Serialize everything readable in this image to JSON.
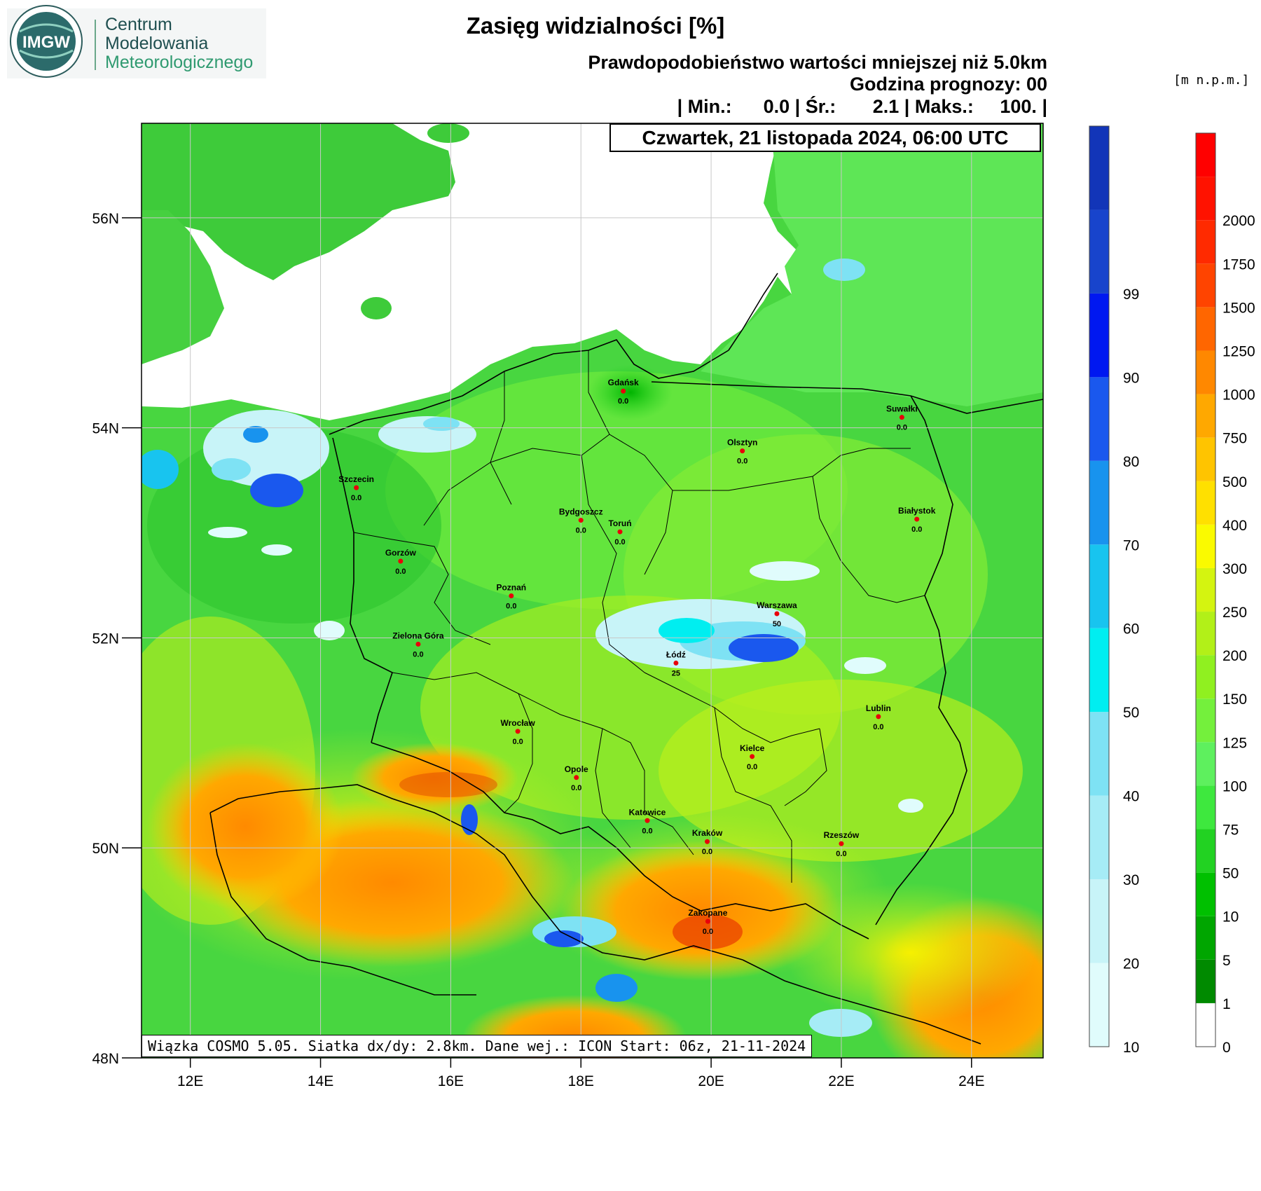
{
  "logo": {
    "badge": "IMGW",
    "org_line1": "Centrum",
    "org_line2": "Modelowania",
    "org_line3": "Meteorologicznego"
  },
  "header": {
    "title": "Zasięg widzialności [%]",
    "subtitle": "Prawdopodobieństwo wartości mniejszej niż 5.0km",
    "forecast_hour": "Godzina prognozy: 00",
    "stats": "| Min.:      0.0 | Śr.:       2.1 | Maks.:     100. |"
  },
  "date_label": "Czwartek, 21 listopada 2024, 06:00 UTC",
  "footer": "Wiązka COSMO 5.05. Siatka dx/dy: 2.8km. Dane wej.: ICON Start: 06z, 21-11-2024",
  "terrain_unit": "[m n.p.m.]",
  "map": {
    "lon_range": [
      11.25,
      25.1
    ],
    "lat_range": [
      48.0,
      56.9
    ],
    "lon_ticks": [
      "12E",
      "14E",
      "16E",
      "18E",
      "20E",
      "22E",
      "24E"
    ],
    "lon_tick_values": [
      12,
      14,
      16,
      18,
      20,
      22,
      24
    ],
    "lat_ticks": [
      "48N",
      "50N",
      "52N",
      "54N",
      "56N"
    ],
    "lat_tick_values": [
      48,
      50,
      52,
      54,
      56
    ],
    "grid": true
  },
  "cities": [
    {
      "name": "Gdańsk",
      "value": "0.0",
      "lon": 18.65,
      "lat": 54.35
    },
    {
      "name": "Suwałki",
      "value": "0.0",
      "lon": 22.93,
      "lat": 54.1
    },
    {
      "name": "Olsztyn",
      "value": "0.0",
      "lon": 20.48,
      "lat": 53.78
    },
    {
      "name": "Szczecin",
      "value": "0.0",
      "lon": 14.55,
      "lat": 53.43
    },
    {
      "name": "Bydgoszcz",
      "value": "0.0",
      "lon": 18.0,
      "lat": 53.12
    },
    {
      "name": "Toruń",
      "value": "0.0",
      "lon": 18.6,
      "lat": 53.01
    },
    {
      "name": "Białystok",
      "value": "0.0",
      "lon": 23.16,
      "lat": 53.13
    },
    {
      "name": "Gorzów",
      "value": "0.0",
      "lon": 15.23,
      "lat": 52.73
    },
    {
      "name": "Poznań",
      "value": "0.0",
      "lon": 16.93,
      "lat": 52.4
    },
    {
      "name": "Warszawa",
      "value": "50",
      "lon": 21.01,
      "lat": 52.23
    },
    {
      "name": "Zielona Góra",
      "value": "0.0",
      "lon": 15.5,
      "lat": 51.94
    },
    {
      "name": "Łódź",
      "value": "25",
      "lon": 19.46,
      "lat": 51.76
    },
    {
      "name": "Lublin",
      "value": "0.0",
      "lon": 22.57,
      "lat": 51.25
    },
    {
      "name": "Wrocław",
      "value": "0.0",
      "lon": 17.03,
      "lat": 51.11
    },
    {
      "name": "Kielce",
      "value": "0.0",
      "lon": 20.63,
      "lat": 50.87
    },
    {
      "name": "Opole",
      "value": "0.0",
      "lon": 17.93,
      "lat": 50.67
    },
    {
      "name": "Katowice",
      "value": "0.0",
      "lon": 19.02,
      "lat": 50.26
    },
    {
      "name": "Kraków",
      "value": "0.0",
      "lon": 19.94,
      "lat": 50.06
    },
    {
      "name": "Rzeszów",
      "value": "0.0",
      "lon": 22.0,
      "lat": 50.04
    },
    {
      "name": "Zakopane",
      "value": "0.0",
      "lon": 19.95,
      "lat": 49.3
    }
  ],
  "probability_legend": {
    "labels": [
      "10",
      "20",
      "30",
      "40",
      "50",
      "60",
      "70",
      "80",
      "90",
      "99"
    ],
    "colors": [
      "#e0fcfc",
      "#c8f4f8",
      "#a6ecf6",
      "#7ee2f4",
      "#00eef0",
      "#18c4ef",
      "#1893ee",
      "#1a58ee",
      "#0018f0",
      "#1844cc",
      "#1235b8"
    ]
  },
  "terrain_legend": {
    "labels": [
      "0",
      "1",
      "5",
      "10",
      "50",
      "75",
      "100",
      "125",
      "150",
      "200",
      "250",
      "300",
      "400",
      "500",
      "750",
      "1000",
      "1250",
      "1500",
      "1750",
      "2000"
    ],
    "colors": [
      "#ffffff",
      "#008a00",
      "#00a600",
      "#00c000",
      "#22d222",
      "#3ee83e",
      "#5ef05e",
      "#74f03c",
      "#90f020",
      "#b2f018",
      "#d4f410",
      "#fafa00",
      "#ffe000",
      "#ffc400",
      "#ffa800",
      "#ff8800",
      "#ff6600",
      "#ff4400",
      "#ff2a00",
      "#ff1200",
      "#ff0000"
    ]
  }
}
